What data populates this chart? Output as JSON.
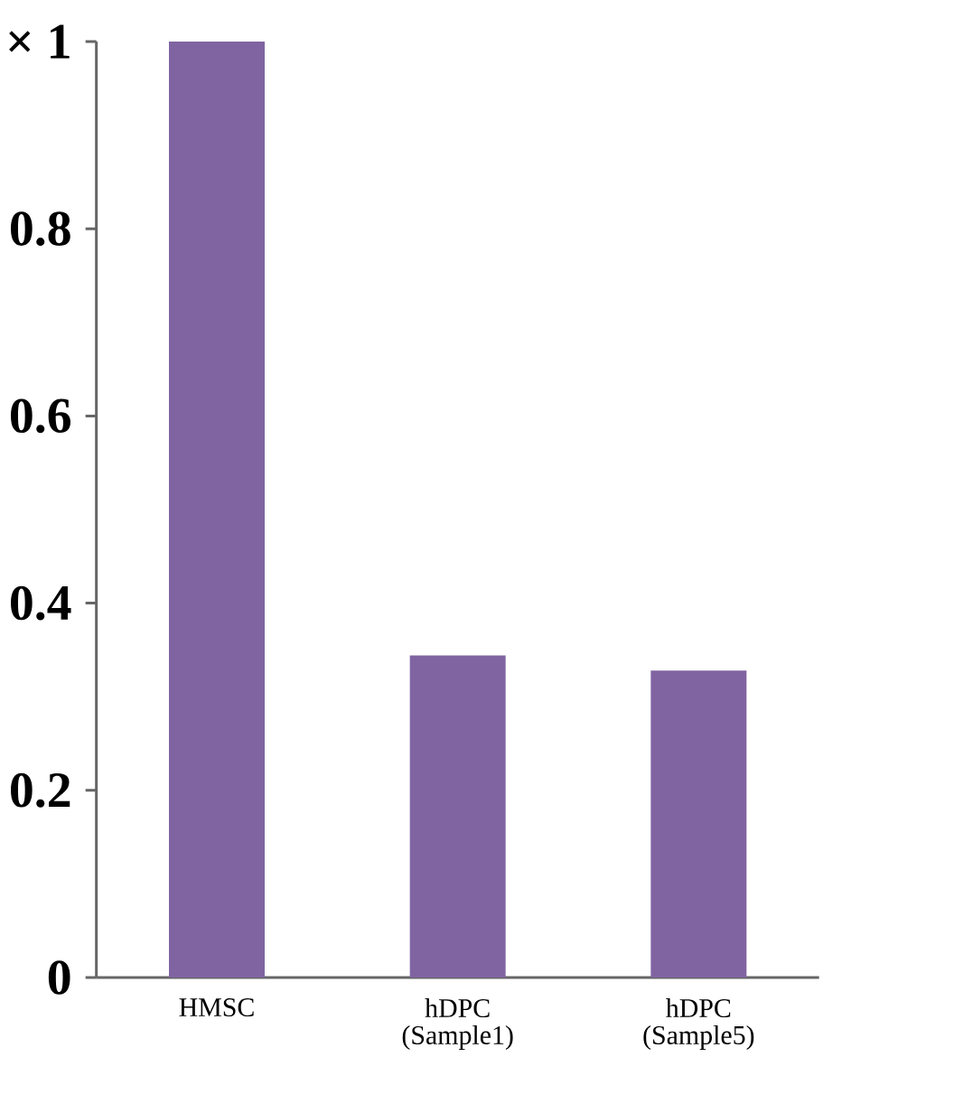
{
  "chart_data": {
    "type": "bar",
    "categories": [
      "HMSC",
      "hDPC (Sample1)",
      "hDPC (Sample5)"
    ],
    "values": [
      1.0,
      0.344,
      0.328
    ],
    "color": "#8064a2",
    "ylim": [
      0,
      1
    ],
    "yticks": [
      0,
      0.2,
      0.4,
      0.6,
      0.8,
      {
        "value": 1,
        "label": "× 1"
      }
    ],
    "grid": false
  }
}
